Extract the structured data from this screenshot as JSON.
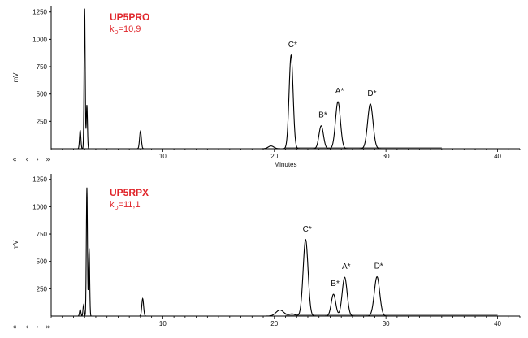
{
  "colors": {
    "trace": "#000000",
    "accent": "#e0262b",
    "axis": "#000000"
  },
  "nav": {
    "first": "«",
    "prev": "‹",
    "next": "›",
    "last": "»"
  },
  "chart_data": [
    {
      "type": "line",
      "ylabel": "mV",
      "xlabel": "Minutes",
      "column_name": "UP5PRO",
      "kd_symbol": "k",
      "kd_subscript": "D",
      "kd_value": "=10,9",
      "xlim": [
        0,
        42
      ],
      "ylim": [
        0,
        1300
      ],
      "x_ticks": [
        10,
        20,
        30,
        40
      ],
      "y_ticks": [
        250,
        500,
        750,
        1000,
        1250
      ],
      "trace_end": 35,
      "peaks": [
        {
          "t": 2.6,
          "h": 170,
          "w": 0.06
        },
        {
          "t": 3.0,
          "h": 1280,
          "w": 0.05
        },
        {
          "t": 3.2,
          "h": 400,
          "w": 0.05
        },
        {
          "t": 8.0,
          "h": 160,
          "w": 0.08
        },
        {
          "t": 19.7,
          "h": 25,
          "w": 0.25
        },
        {
          "t": 21.5,
          "h": 855,
          "w": 0.18
        },
        {
          "t": 24.2,
          "h": 210,
          "w": 0.2
        },
        {
          "t": 25.7,
          "h": 430,
          "w": 0.22
        },
        {
          "t": 28.6,
          "h": 410,
          "w": 0.24
        }
      ],
      "peak_labels": [
        {
          "text": "C*",
          "t": 21.5,
          "h": 855
        },
        {
          "text": "B*",
          "t": 24.2,
          "h": 210
        },
        {
          "text": "A*",
          "t": 25.7,
          "h": 430
        },
        {
          "text": "D*",
          "t": 28.6,
          "h": 410
        }
      ]
    },
    {
      "type": "line",
      "ylabel": "mV",
      "xlabel": "",
      "column_name": "UP5RPX",
      "kd_symbol": "k",
      "kd_subscript": "D",
      "kd_value": "=11,1",
      "xlim": [
        0,
        42
      ],
      "ylim": [
        0,
        1300
      ],
      "x_ticks": [
        10,
        20,
        30,
        40
      ],
      "y_ticks": [
        250,
        500,
        750,
        1000,
        1250
      ],
      "trace_end": 40,
      "peaks": [
        {
          "t": 2.6,
          "h": 60,
          "w": 0.06
        },
        {
          "t": 2.9,
          "h": 100,
          "w": 0.05
        },
        {
          "t": 3.2,
          "h": 1175,
          "w": 0.05
        },
        {
          "t": 3.4,
          "h": 620,
          "w": 0.05
        },
        {
          "t": 8.2,
          "h": 160,
          "w": 0.08
        },
        {
          "t": 20.5,
          "h": 55,
          "w": 0.35
        },
        {
          "t": 21.6,
          "h": 20,
          "w": 0.3
        },
        {
          "t": 22.8,
          "h": 700,
          "w": 0.22
        },
        {
          "t": 25.3,
          "h": 200,
          "w": 0.2
        },
        {
          "t": 26.3,
          "h": 355,
          "w": 0.22
        },
        {
          "t": 29.2,
          "h": 360,
          "w": 0.24
        }
      ],
      "peak_labels": [
        {
          "text": "C*",
          "t": 22.8,
          "h": 700
        },
        {
          "text": "B*",
          "t": 25.3,
          "h": 200
        },
        {
          "text": "A*",
          "t": 26.3,
          "h": 355
        },
        {
          "text": "D*",
          "t": 29.2,
          "h": 360
        }
      ]
    }
  ]
}
